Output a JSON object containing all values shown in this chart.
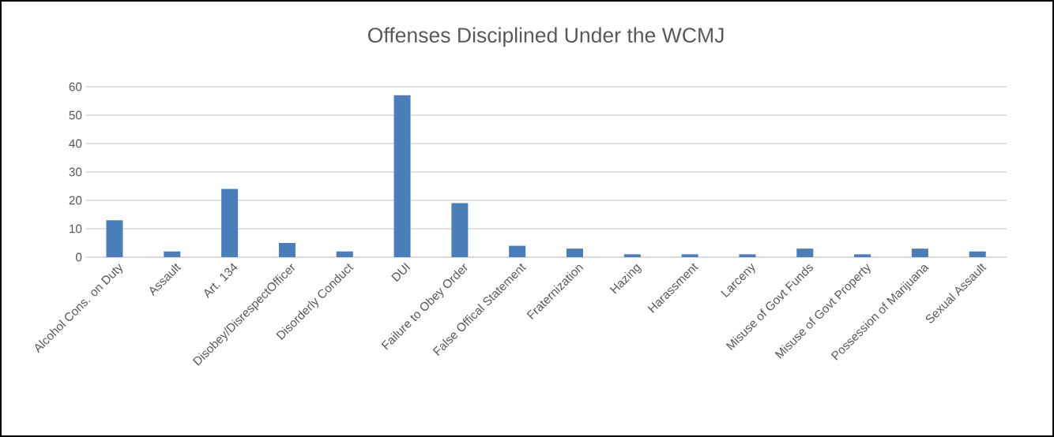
{
  "chart_data": {
    "type": "bar",
    "title": "Offenses Disciplined Under the WCMJ",
    "categories": [
      "Alcohol Cons. on Duty",
      "Assault",
      "Art. 134",
      "Disobey/DisrespectOfficer",
      "Disorderly Conduct",
      "DUI",
      "Failure to Obey Order",
      "False Offical Statement",
      "Fraternization",
      "Hazing",
      "Harassment",
      "Larceny",
      "Misuse of Govt Funds",
      "Misuse of Govt Property",
      "Possession of Marijuana",
      "Sexual Assault"
    ],
    "values": [
      13,
      2,
      24,
      5,
      2,
      57,
      19,
      4,
      3,
      1,
      1,
      1,
      3,
      1,
      3,
      2
    ],
    "color": "#4a7ebb",
    "ylim": [
      0,
      60
    ],
    "yticks": [
      0,
      10,
      20,
      30,
      40,
      50,
      60
    ],
    "grid": "y"
  }
}
